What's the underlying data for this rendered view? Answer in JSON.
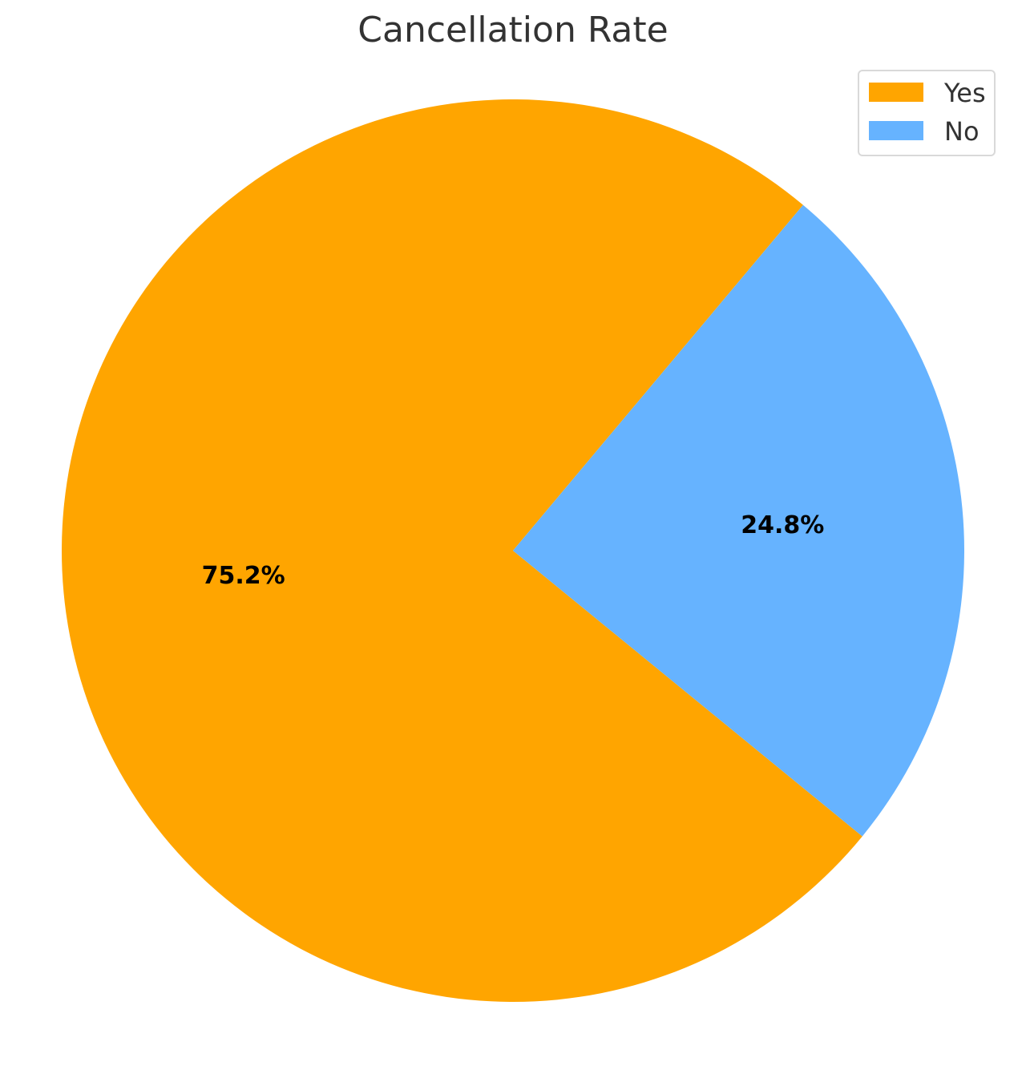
{
  "chart_data": {
    "type": "pie",
    "title": "Cancellation Rate",
    "labels": [
      "Yes",
      "No"
    ],
    "values": [
      75.2,
      24.8
    ],
    "value_labels": [
      "75.2%",
      "24.8%"
    ],
    "colors": [
      "#FFA500",
      "#66B3FF"
    ],
    "start_angle_deg": 50,
    "legend": {
      "placement": "top-right",
      "entries": [
        "Yes",
        "No"
      ]
    }
  }
}
